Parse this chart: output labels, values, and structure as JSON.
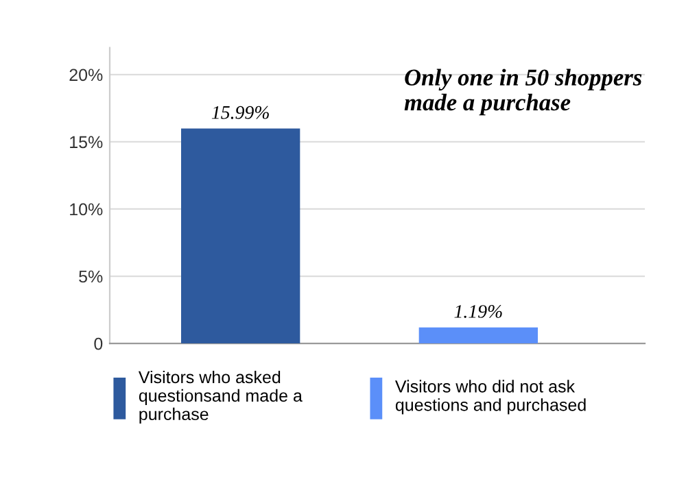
{
  "chart_data": {
    "type": "bar",
    "categories": [
      null,
      null
    ],
    "series": [
      {
        "name": "Visitors who asked questionsand made a purchase",
        "color": "#2e5a9e",
        "values": [
          15.99,
          null
        ],
        "value_labels": [
          "15.99%",
          null
        ]
      },
      {
        "name": "Visitors who did not ask questions and purchased",
        "color": "#5b8ff9",
        "values": [
          null,
          1.19
        ],
        "value_labels": [
          null,
          "1.19%"
        ]
      }
    ],
    "ylim": [
      0,
      22
    ],
    "yticks": [
      {
        "value": 0,
        "label": "0"
      },
      {
        "value": 5,
        "label": "5%"
      },
      {
        "value": 10,
        "label": "10%"
      },
      {
        "value": 15,
        "label": "15%"
      },
      {
        "value": 20,
        "label": "20%"
      }
    ],
    "grid": "y",
    "legend": "bottom",
    "annotations": [
      "Only one in 50 shoppers made a purchase"
    ]
  }
}
